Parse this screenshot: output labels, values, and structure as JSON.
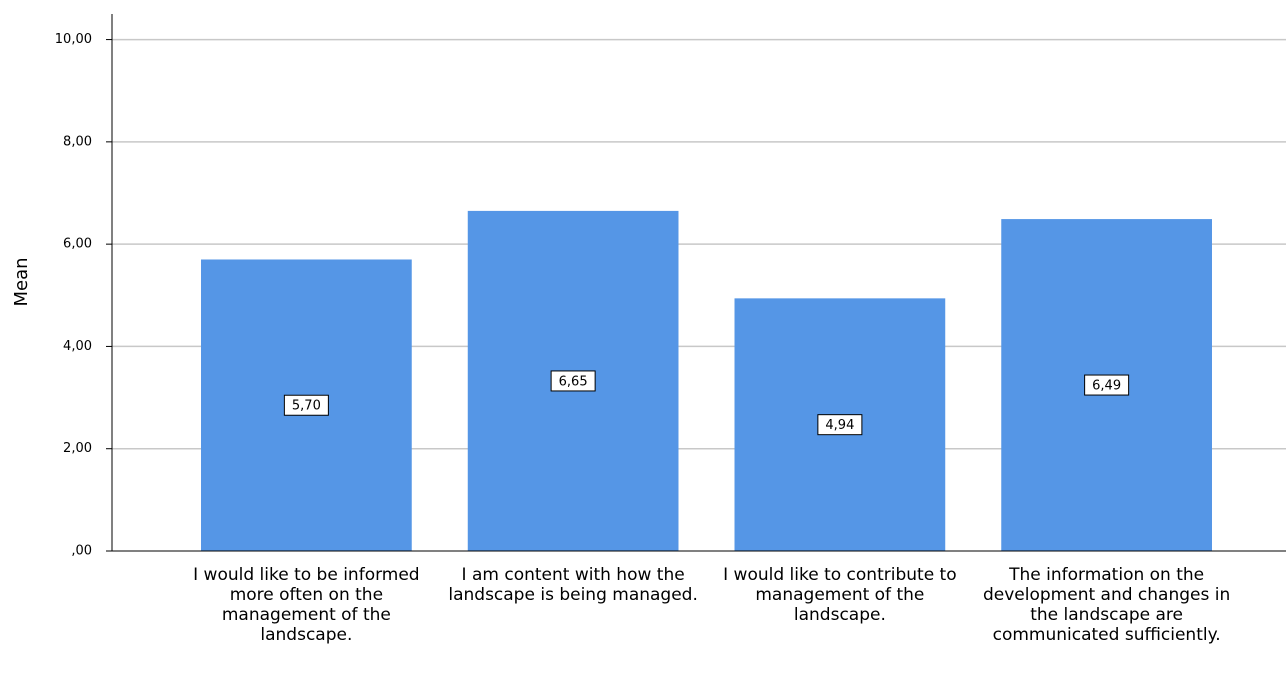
{
  "chart_data": {
    "type": "bar",
    "y_label": "Mean",
    "categories": [
      "I would like to be informed more often on the management of the landscape.",
      "I am content with how the landscape is being managed.",
      "I would like to contribute to management of the landscape.",
      "The information on the development and changes in the landscape are communicated sufficiently."
    ],
    "values": [
      5.7,
      6.65,
      4.94,
      6.49
    ],
    "value_labels": [
      "5,70",
      "6,65",
      "4,94",
      "6,49"
    ],
    "color": "#5596e6",
    "ylim": [
      0,
      10.5
    ],
    "yticks": [
      {
        "value": 0,
        "label": ",00"
      },
      {
        "value": 2,
        "label": "2,00"
      },
      {
        "value": 4,
        "label": "4,00"
      },
      {
        "value": 6,
        "label": "6,00"
      },
      {
        "value": 8,
        "label": "8,00"
      },
      {
        "value": 10,
        "label": "10,00"
      }
    ],
    "grid": true
  }
}
